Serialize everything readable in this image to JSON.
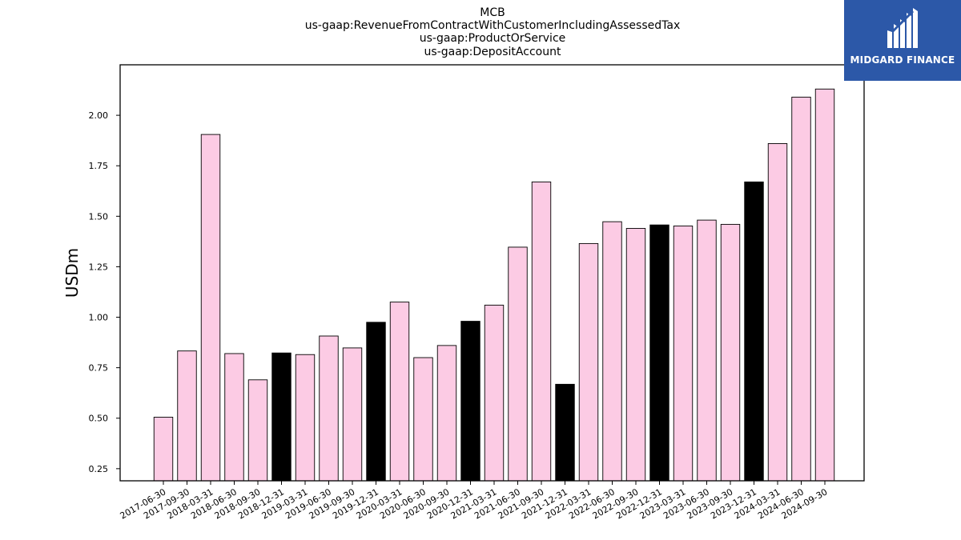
{
  "chart_data": {
    "type": "bar",
    "title": [
      "MCB",
      "us-gaap:RevenueFromContractWithCustomerIncludingAssessedTax",
      "us-gaap:ProductOrService",
      "us-gaap:DepositAccount"
    ],
    "ylabel": "USDm",
    "xlabel": "",
    "ylim": [
      0.19,
      2.25
    ],
    "yticks": [
      0.25,
      0.5,
      0.75,
      1.0,
      1.25,
      1.5,
      1.75,
      2.0
    ],
    "ytick_labels": [
      "0.25",
      "0.50",
      "0.75",
      "1.00",
      "1.25",
      "1.50",
      "1.75",
      "2.00"
    ],
    "categories": [
      "2017-06-30",
      "2017-09-30",
      "2018-03-31",
      "2018-06-30",
      "2018-09-30",
      "2018-12-31",
      "2019-03-31",
      "2019-06-30",
      "2019-09-30",
      "2019-12-31",
      "2020-03-31",
      "2020-06-30",
      "2020-09-30",
      "2020-12-31",
      "2021-03-31",
      "2021-06-30",
      "2021-09-30",
      "2021-12-31",
      "2022-03-31",
      "2022-06-30",
      "2022-09-30",
      "2022-12-31",
      "2023-03-31",
      "2023-06-30",
      "2023-09-30",
      "2023-12-31",
      "2024-03-31",
      "2024-06-30",
      "2024-09-30"
    ],
    "values": [
      0.505,
      0.833,
      1.905,
      0.82,
      0.69,
      0.823,
      0.815,
      0.907,
      0.848,
      0.975,
      1.075,
      0.8,
      0.86,
      0.98,
      1.06,
      1.347,
      1.67,
      0.668,
      1.365,
      1.473,
      1.44,
      1.457,
      1.452,
      1.481,
      1.46,
      1.67,
      1.86,
      2.09,
      2.13
    ],
    "bar_colors": [
      "#fccbe4",
      "#fccbe4",
      "#fccbe4",
      "#fccbe4",
      "#fccbe4",
      "#000000",
      "#fccbe4",
      "#fccbe4",
      "#fccbe4",
      "#000000",
      "#fccbe4",
      "#fccbe4",
      "#fccbe4",
      "#000000",
      "#fccbe4",
      "#fccbe4",
      "#fccbe4",
      "#000000",
      "#fccbe4",
      "#fccbe4",
      "#fccbe4",
      "#000000",
      "#fccbe4",
      "#fccbe4",
      "#fccbe4",
      "#000000",
      "#fccbe4",
      "#fccbe4",
      "#fccbe4"
    ],
    "grid": false,
    "legend": "none"
  },
  "logo": {
    "text": "MIDGARD FINANCE",
    "background": "#2c58a8"
  }
}
